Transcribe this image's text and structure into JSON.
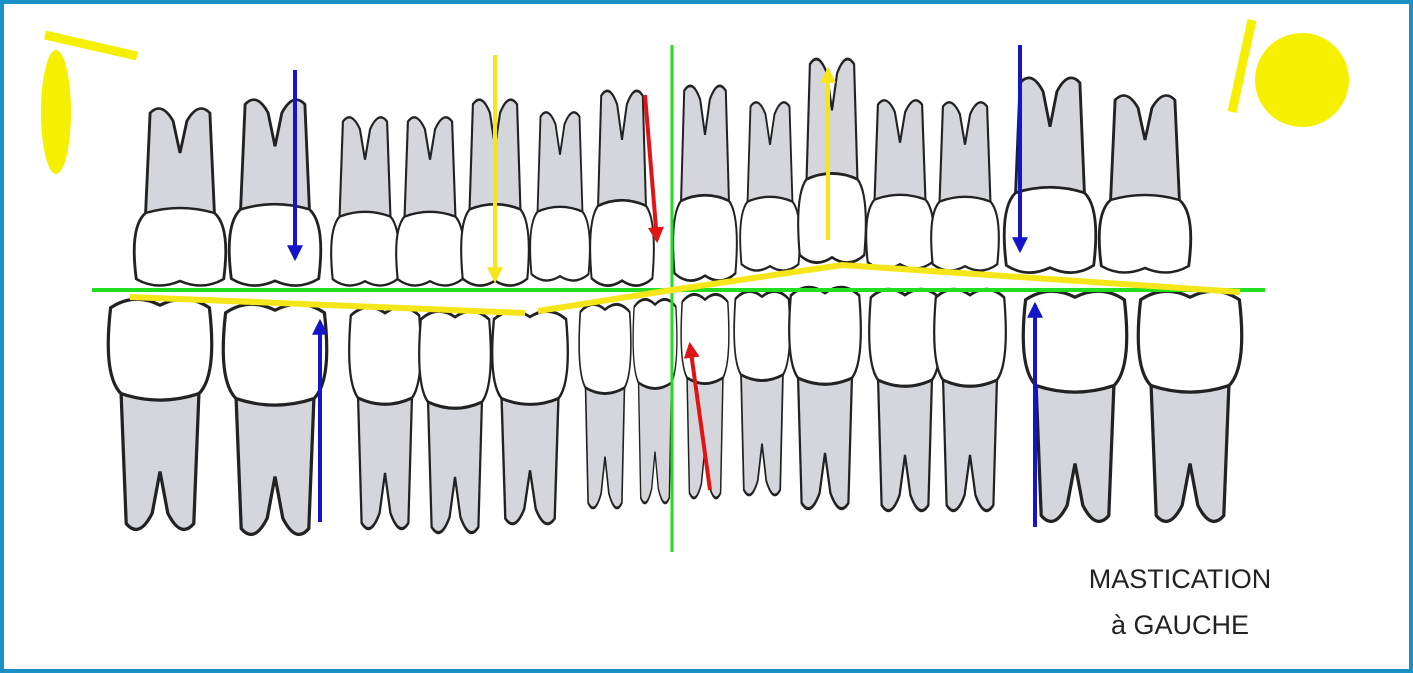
{
  "caption": {
    "line1": "MASTICATION",
    "line2": "à GAUCHE"
  }
}
